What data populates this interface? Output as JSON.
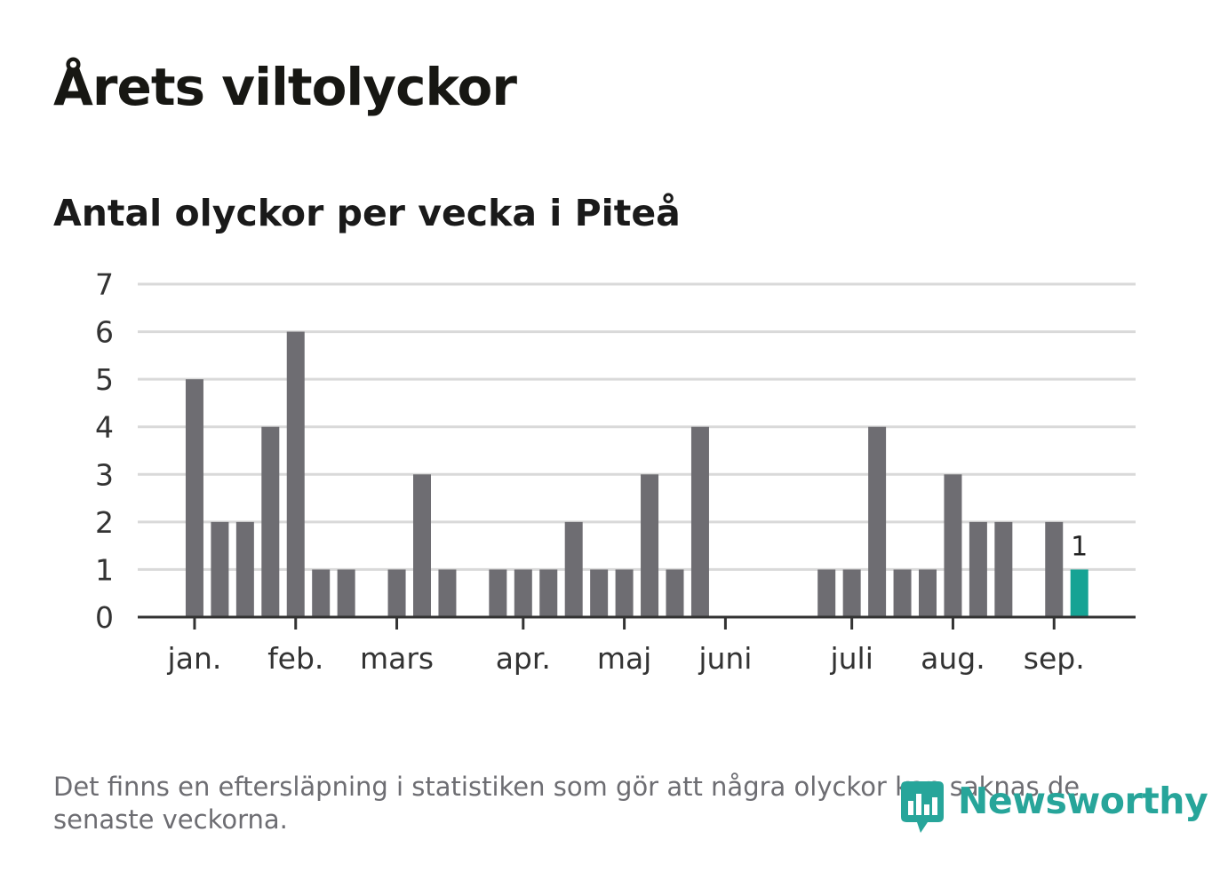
{
  "title": "Årets viltolyckor",
  "subtitle": "Antal olyckor per vecka i Piteå",
  "footnote": "Det finns en eftersläpning i statistiken som gör att några olyckor kan saknas de senaste veckorna.",
  "logo": {
    "text": "Newsworthy",
    "icon": "newsworthy-logo-icon",
    "color": "#27a59a"
  },
  "chart_data": {
    "type": "bar",
    "title": "Antal olyckor per vecka i Piteå",
    "xlabel": "",
    "ylabel": "",
    "ylim": [
      0,
      7
    ],
    "yticks": [
      0,
      1,
      2,
      3,
      4,
      5,
      6,
      7
    ],
    "grid": true,
    "legend": "none",
    "month_labels": [
      "jan.",
      "feb.",
      "mars",
      "apr.",
      "maj",
      "juni",
      "juli",
      "aug.",
      "sep."
    ],
    "month_tick_week": [
      1,
      5,
      9,
      14,
      18,
      22,
      27,
      31,
      35
    ],
    "week_values": [
      0,
      5,
      2,
      2,
      4,
      6,
      1,
      1,
      0,
      1,
      3,
      1,
      0,
      1,
      1,
      1,
      2,
      1,
      1,
      3,
      1,
      4,
      0,
      0,
      0,
      0,
      1,
      1,
      4,
      1,
      1,
      3,
      2,
      2,
      0,
      2,
      1
    ],
    "highlight_index": 36,
    "highlight_label": "1",
    "colors": {
      "bar": "#6e6d72",
      "highlight": "#16a394",
      "grid": "#d9d9d9",
      "axis": "#333333"
    }
  }
}
